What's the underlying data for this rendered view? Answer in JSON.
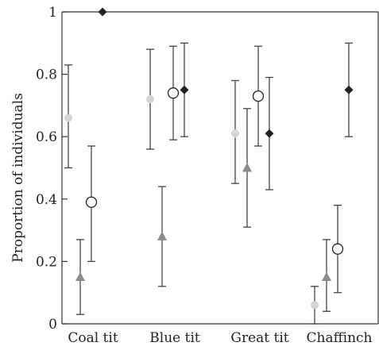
{
  "chart_data": {
    "type": "scatter",
    "ylabel": "Proportion of individuals",
    "xlabel": "",
    "ylim": [
      0,
      1
    ],
    "yticks": [
      0,
      0.2,
      0.4,
      0.6,
      0.8,
      1
    ],
    "ytick_labels": [
      "0",
      "0.2",
      "0.4",
      "0.6",
      "0.8",
      "1"
    ],
    "categories": [
      "Coal tit",
      "Blue tit",
      "Great tit",
      "Chaffinch"
    ],
    "grid": false,
    "legend": "none",
    "series": [
      {
        "marker": "circle-filled",
        "color": "#d4d4d4",
        "values": [
          0.66,
          0.72,
          0.61,
          0.06
        ],
        "lower": [
          0.5,
          0.56,
          0.45,
          0.0
        ],
        "upper": [
          0.83,
          0.88,
          0.78,
          0.12
        ]
      },
      {
        "marker": "triangle",
        "color": "#8c8c8c",
        "values": [
          0.15,
          0.28,
          0.5,
          0.15
        ],
        "lower": [
          0.03,
          0.12,
          0.31,
          0.04
        ],
        "upper": [
          0.27,
          0.44,
          0.69,
          0.27
        ]
      },
      {
        "marker": "circle-open",
        "color": "#222222",
        "values": [
          0.39,
          0.74,
          0.73,
          0.24
        ],
        "lower": [
          0.2,
          0.59,
          0.57,
          0.1
        ],
        "upper": [
          0.57,
          0.89,
          0.89,
          0.38
        ]
      },
      {
        "marker": "diamond",
        "color": "#222222",
        "values": [
          1.0,
          0.75,
          0.61,
          0.75
        ],
        "lower": [
          null,
          0.6,
          0.43,
          0.6
        ],
        "upper": [
          null,
          0.9,
          0.79,
          0.9
        ]
      }
    ]
  }
}
